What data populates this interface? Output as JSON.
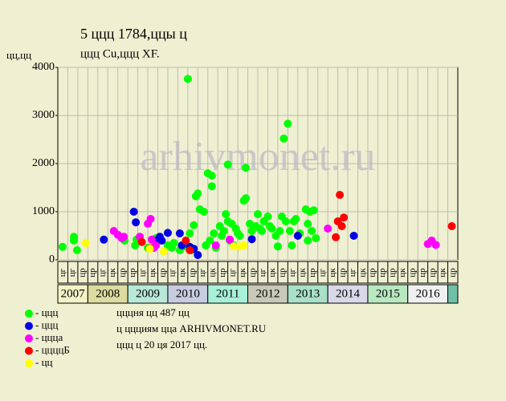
{
  "chart_data": {
    "type": "scatter",
    "title": "5 ццц 1784,ццы ц",
    "subtitle": "ццц Cu,ццц XF.",
    "y_label": "цц,цц",
    "xlim": [
      2007.25,
      2017.25
    ],
    "ylim": [
      0,
      4000
    ],
    "yticks": [
      0,
      1000,
      2000,
      3000,
      4000
    ],
    "grid": true,
    "quarter_labels": [
      "цг",
      "цг",
      "цр",
      "цр",
      "цг",
      "цк",
      "цр",
      "цр",
      "цг",
      "цк",
      "цр",
      "цг",
      "цк",
      "цр",
      "цг",
      "цк",
      "цр",
      "цг",
      "цк",
      "цр",
      "цг",
      "цк",
      "цр",
      "цг",
      "цк",
      "цр",
      "цг",
      "цк",
      "цр",
      "цг",
      "цк",
      "цр",
      "цр",
      "цр",
      "цк",
      "цр",
      "цр",
      "цр",
      "цк",
      "цр"
    ],
    "year_bands": [
      {
        "label": "2007",
        "from": 2007.25,
        "to": 2008,
        "color": "#f3f3c8"
      },
      {
        "label": "2008",
        "from": 2008,
        "to": 2009,
        "color": "#dcdca0"
      },
      {
        "label": "2009",
        "from": 2009,
        "to": 2010,
        "color": "#b8e8d8"
      },
      {
        "label": "2010",
        "from": 2010,
        "to": 2011,
        "color": "#c8cce0"
      },
      {
        "label": "2011",
        "from": 2011,
        "to": 2012,
        "color": "#a8f0d8"
      },
      {
        "label": "2012",
        "from": 2012,
        "to": 2013,
        "color": "#c8c8b8"
      },
      {
        "label": "2013",
        "from": 2013,
        "to": 2014,
        "color": "#a8e0c8"
      },
      {
        "label": "2014",
        "from": 2014,
        "to": 2015,
        "color": "#d8d8e8"
      },
      {
        "label": "2015",
        "from": 2015,
        "to": 2016,
        "color": "#b8e8c0"
      },
      {
        "label": "2016",
        "from": 2016,
        "to": 2017,
        "color": "#f0f0f0"
      },
      {
        "label": "",
        "from": 2017,
        "to": 2017.25,
        "color": "#70c0a8"
      }
    ],
    "series": [
      {
        "name": "- ццц",
        "color": "#00ff00",
        "x": [
          2007.37,
          2007.65,
          2007.65,
          2007.73,
          2008.92,
          2009.18,
          2009.22,
          2009.5,
          2009.62,
          2009.7,
          2010.0,
          2010.1,
          2010.15,
          2010.3,
          2010.4,
          2010.5,
          2010.55,
          2010.6,
          2010.65,
          2010.7,
          2010.75,
          2010.8,
          2010.9,
          2010.95,
          2011.0,
          2011.05,
          2011.1,
          2011.1,
          2011.15,
          2011.2,
          2011.3,
          2011.35,
          2011.4,
          2011.45,
          2011.5,
          2011.5,
          2011.55,
          2011.6,
          2011.65,
          2011.7,
          2011.75,
          2011.8,
          2011.9,
          2011.95,
          2011.95,
          2012.05,
          2012.1,
          2012.2,
          2012.25,
          2012.3,
          2012.35,
          2012.4,
          2012.5,
          2012.55,
          2012.6,
          2012.7,
          2012.75,
          2012.8,
          2012.85,
          2012.9,
          2012.95,
          2013.0,
          2013.05,
          2013.1,
          2013.15,
          2013.2,
          2013.3,
          2013.45,
          2013.5,
          2013.5,
          2013.55,
          2013.6,
          2013.65,
          2013.7
        ],
        "values": [
          270,
          480,
          400,
          200,
          400,
          300,
          420,
          250,
          400,
          450,
          300,
          250,
          350,
          200,
          280,
          3760,
          550,
          200,
          720,
          1320,
          1380,
          1050,
          1000,
          300,
          1800,
          400,
          1750,
          1530,
          550,
          250,
          700,
          500,
          600,
          950,
          800,
          1980,
          400,
          750,
          300,
          650,
          550,
          500,
          1230,
          1910,
          1280,
          750,
          600,
          700,
          950,
          650,
          600,
          800,
          900,
          700,
          650,
          500,
          280,
          600,
          900,
          2520,
          800,
          2830,
          600,
          300,
          800,
          850,
          550,
          1050,
          750,
          400,
          1000,
          600,
          1030,
          450
        ]
      },
      {
        "name": "- ццц",
        "color": "#0000e0",
        "x": [
          2008.4,
          2009.15,
          2009.2,
          2009.7,
          2009.8,
          2009.85,
          2010.0,
          2010.3,
          2010.35,
          2010.55,
          2010.65,
          2010.75,
          2012.1,
          2013.25,
          2014.65
        ],
        "values": [
          420,
          1000,
          780,
          400,
          480,
          400,
          560,
          550,
          300,
          270,
          230,
          100,
          430,
          500,
          500
        ]
      },
      {
        "name": "- ццца",
        "color": "#ff00ff",
        "x": [
          2008.65,
          2008.75,
          2008.85,
          2008.9,
          2009.3,
          2009.5,
          2009.57,
          2009.6,
          2009.65,
          2009.7,
          2011.2,
          2011.55,
          2014.0,
          2016.5,
          2016.6,
          2016.7
        ],
        "values": [
          600,
          520,
          450,
          480,
          480,
          750,
          850,
          420,
          250,
          300,
          300,
          420,
          650,
          330,
          400,
          310
        ]
      },
      {
        "name": "- ццццБ",
        "color": "#ff0000",
        "x": [
          2009.35,
          2009.55,
          2010.45,
          2010.55,
          2014.2,
          2014.25,
          2014.3,
          2014.35,
          2014.4,
          2017.1
        ],
        "values": [
          370,
          240,
          400,
          200,
          470,
          800,
          1350,
          700,
          880,
          700
        ]
      },
      {
        "name": "- цц",
        "color": "#ffff00",
        "x": [
          2007.95,
          2009.55,
          2009.9,
          2011.65,
          2011.8,
          2011.9
        ],
        "values": [
          350,
          230,
          180,
          280,
          280,
          300
        ]
      }
    ],
    "notes": [
      "цццня цц 487 цц",
      "ц ццциям цца ARHIVMONET.RU",
      "ццц ц 20 ця 2017 цц."
    ],
    "watermark": "arhivmonet.ru"
  }
}
